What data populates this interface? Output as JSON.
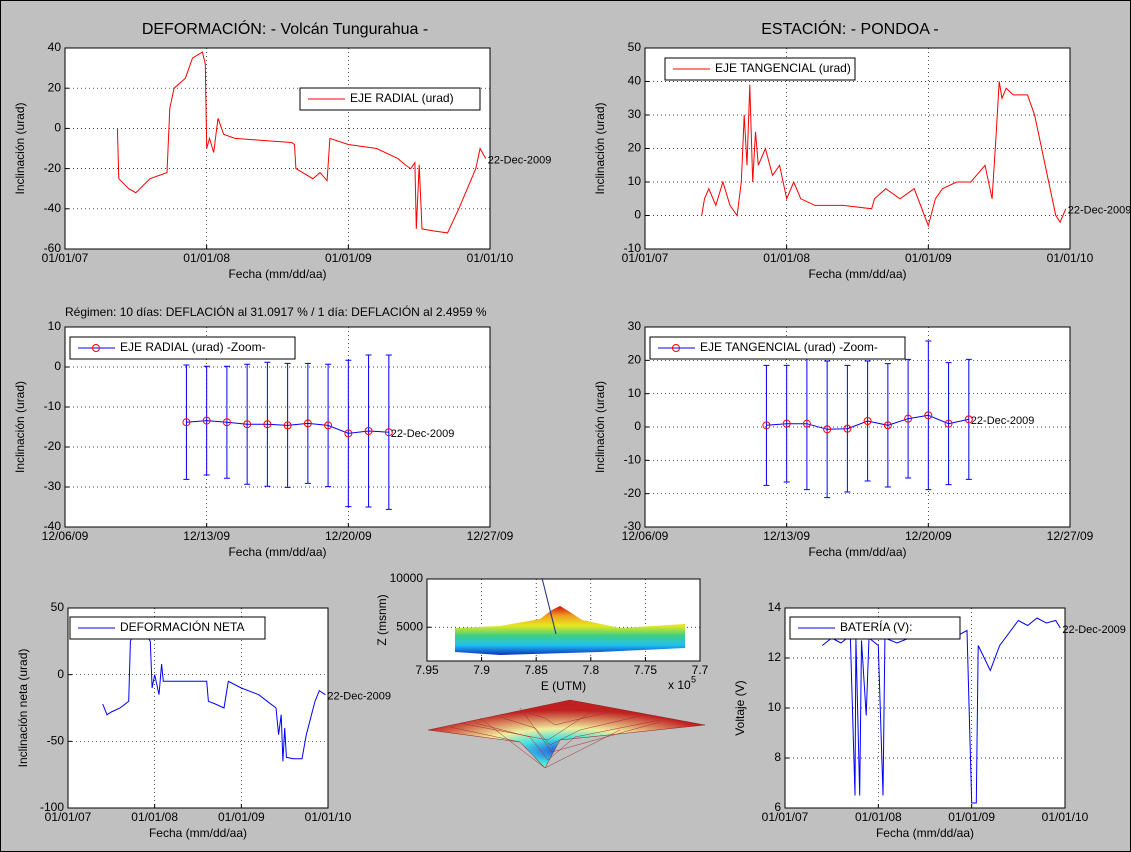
{
  "header": {
    "left_title": "DEFORMACIÓN: - Volcán Tungurahua -",
    "right_title": "ESTACIÓN: - PONDOA -",
    "regime": "Régimen: 10 días: DEFLACIÓN al 31.0917 % / 1 día: DEFLACIÓN al 2.4959 %"
  },
  "chart_data": [
    {
      "type": "line",
      "xlabel": "Fecha (mm/dd/aa)",
      "ylabel": "Inclinación (urad)",
      "annotation": "22-Dec-2009",
      "grid": true,
      "xlim": [
        2007,
        2010
      ],
      "xticks": [
        {
          "value": 2007,
          "label": "01/01/07"
        },
        {
          "value": 2008,
          "label": "01/01/08"
        },
        {
          "value": 2009,
          "label": "01/01/09"
        },
        {
          "value": 2010,
          "label": "01/01/10"
        }
      ],
      "ylim": [
        -60,
        40
      ],
      "yticks": [
        -60,
        -40,
        -20,
        0,
        20,
        40
      ],
      "x": [
        2007.37,
        2007.38,
        2007.45,
        2007.5,
        2007.6,
        2007.72,
        2007.74,
        2007.77,
        2007.85,
        2007.9,
        2007.97,
        2007.99,
        2008.0,
        2008.02,
        2008.05,
        2008.08,
        2008.12,
        2008.2,
        2008.4,
        2008.6,
        2008.62,
        2008.63,
        2008.75,
        2008.8,
        2008.85,
        2008.87,
        2009.0,
        2009.2,
        2009.35,
        2009.4,
        2009.44,
        2009.47,
        2009.48,
        2009.5,
        2009.52,
        2009.6,
        2009.7,
        2009.78,
        2009.9,
        2009.93,
        2009.97
      ],
      "series": [
        {
          "name": "EJE RADIAL (urad)",
          "color": "#ff0000",
          "values": [
            0,
            -25,
            -30,
            -32,
            -25,
            -22,
            10,
            20,
            25,
            35,
            38,
            32,
            -10,
            -5,
            -12,
            5,
            -3,
            -5,
            -6,
            -7,
            -8,
            -20,
            -25,
            -22,
            -26,
            -5,
            -8,
            -10,
            -15,
            -18,
            -20,
            -17,
            -50,
            -18,
            -50,
            -51,
            -52,
            -40,
            -20,
            -10,
            -15
          ]
        }
      ]
    },
    {
      "type": "line",
      "xlabel": "Fecha (mm/dd/aa)",
      "ylabel": "Inclinación (urad)",
      "annotation": "22-Dec-2009",
      "grid": true,
      "xlim": [
        2007,
        2010
      ],
      "xticks": [
        {
          "value": 2007,
          "label": "01/01/07"
        },
        {
          "value": 2008,
          "label": "01/01/08"
        },
        {
          "value": 2009,
          "label": "01/01/09"
        },
        {
          "value": 2010,
          "label": "01/01/10"
        }
      ],
      "ylim": [
        -10,
        50
      ],
      "yticks": [
        -10,
        0,
        10,
        20,
        30,
        40,
        50
      ],
      "x": [
        2007.4,
        2007.42,
        2007.45,
        2007.5,
        2007.55,
        2007.6,
        2007.65,
        2007.68,
        2007.7,
        2007.72,
        2007.74,
        2007.76,
        2007.78,
        2007.8,
        2007.85,
        2007.9,
        2007.95,
        2008.0,
        2008.05,
        2008.1,
        2008.2,
        2008.4,
        2008.6,
        2008.62,
        2008.7,
        2008.8,
        2008.9,
        2009.0,
        2009.05,
        2009.1,
        2009.2,
        2009.3,
        2009.4,
        2009.45,
        2009.48,
        2009.5,
        2009.52,
        2009.55,
        2009.6,
        2009.7,
        2009.75,
        2009.85,
        2009.9,
        2009.93,
        2009.97
      ],
      "series": [
        {
          "name": "EJE TANGENCIAL (urad)",
          "color": "#ff0000",
          "values": [
            0,
            5,
            8,
            3,
            10,
            3,
            0,
            10,
            30,
            15,
            39,
            10,
            25,
            15,
            20,
            12,
            15,
            5,
            10,
            5,
            3,
            3,
            2,
            5,
            8,
            5,
            8,
            -3,
            5,
            8,
            10,
            10,
            15,
            5,
            25,
            40,
            35,
            38,
            36,
            36,
            30,
            10,
            0,
            -2,
            2
          ]
        }
      ]
    },
    {
      "type": "errorbar",
      "xlabel": "Fecha (mm/dd/aa)",
      "ylabel": "Inclinación (urad)",
      "annotation": "22-Dec-2009",
      "grid": true,
      "xlim": [
        6,
        27
      ],
      "xticks": [
        {
          "value": 6,
          "label": "12/06/09"
        },
        {
          "value": 13,
          "label": "12/13/09"
        },
        {
          "value": 20,
          "label": "12/20/09"
        },
        {
          "value": 27,
          "label": "12/27/09"
        }
      ],
      "ylim": [
        -40,
        10
      ],
      "yticks": [
        -40,
        -30,
        -20,
        -10,
        0,
        10
      ],
      "x": [
        12,
        13,
        14,
        15,
        16,
        17,
        18,
        19,
        20,
        21,
        22
      ],
      "series": [
        {
          "name": "EJE RADIAL (urad) -Zoom-",
          "color": "#0000ff",
          "marker_color": "#ff0000",
          "values": [
            -13.8,
            -13.4,
            -13.8,
            -14.3,
            -14.3,
            -14.6,
            -14.1,
            -14.6,
            -16.6,
            -16,
            -16.3
          ],
          "errors": [
            14.3,
            13.6,
            14,
            15,
            15.5,
            15.5,
            15,
            15.3,
            18.3,
            19,
            19.3
          ]
        }
      ]
    },
    {
      "type": "errorbar",
      "xlabel": "Fecha (mm/dd/aa)",
      "ylabel": "Inclinación (urad)",
      "annotation": "22-Dec-2009",
      "grid": true,
      "xlim": [
        6,
        27
      ],
      "xticks": [
        {
          "value": 6,
          "label": "12/06/09"
        },
        {
          "value": 13,
          "label": "12/13/09"
        },
        {
          "value": 20,
          "label": "12/20/09"
        },
        {
          "value": 27,
          "label": "12/27/09"
        }
      ],
      "ylim": [
        -30,
        30
      ],
      "yticks": [
        -30,
        -20,
        -10,
        0,
        10,
        20,
        30
      ],
      "x": [
        12,
        13,
        14,
        15,
        16,
        17,
        18,
        19,
        20,
        21,
        22
      ],
      "series": [
        {
          "name": "EJE TANGENCIAL (urad) -Zoom-",
          "color": "#0000ff",
          "marker_color": "#ff0000",
          "values": [
            0.5,
            1,
            1,
            -0.7,
            -0.5,
            1.8,
            0.5,
            2.5,
            3.5,
            1,
            2.3
          ],
          "errors": [
            18,
            17.5,
            19.8,
            20.5,
            19,
            18,
            18.5,
            17.8,
            22.3,
            18.3,
            18
          ]
        }
      ]
    },
    {
      "type": "line",
      "xlabel": "Fecha (mm/dd/aa)",
      "ylabel": "Inclinación neta (urad)",
      "annotation": "22-Dec-2009",
      "grid": true,
      "xlim": [
        2007,
        2010
      ],
      "xticks": [
        {
          "value": 2007,
          "label": "01/01/07"
        },
        {
          "value": 2008,
          "label": "01/01/08"
        },
        {
          "value": 2009,
          "label": "01/01/09"
        },
        {
          "value": 2010,
          "label": "01/01/10"
        }
      ],
      "ylim": [
        -100,
        50
      ],
      "yticks": [
        -100,
        -50,
        0,
        50
      ],
      "x": [
        2007.4,
        2007.45,
        2007.5,
        2007.6,
        2007.7,
        2007.72,
        2007.75,
        2007.9,
        2007.95,
        2007.97,
        2008.0,
        2008.05,
        2008.08,
        2008.1,
        2008.3,
        2008.6,
        2008.62,
        2008.7,
        2008.8,
        2008.85,
        2009.0,
        2009.2,
        2009.3,
        2009.4,
        2009.43,
        2009.46,
        2009.48,
        2009.5,
        2009.52,
        2009.6,
        2009.7,
        2009.75,
        2009.85,
        2009.9,
        2009.97
      ],
      "series": [
        {
          "name": "DEFORMACIÓN NETA",
          "color": "#0000ff",
          "values": [
            -22,
            -30,
            -28,
            -25,
            -20,
            25,
            30,
            30,
            25,
            -10,
            0,
            -15,
            8,
            -5,
            -5,
            -5,
            -20,
            -22,
            -25,
            -5,
            -10,
            -15,
            -20,
            -25,
            -45,
            -30,
            -65,
            -40,
            -62,
            -63,
            -63,
            -45,
            -20,
            -12,
            -15
          ]
        }
      ]
    },
    {
      "type": "surface",
      "xlabel": "E (UTM)",
      "ylabel": "Z (msnm)",
      "x_multiplier": "x 10",
      "x_multiplier_exp": "5",
      "grid": true,
      "xlim": [
        7.95,
        7.7
      ],
      "xticks": [
        7.95,
        7.9,
        7.85,
        7.8,
        7.75,
        7.7
      ],
      "ylim": [
        1500,
        10000
      ],
      "yticks": [
        5000,
        10000
      ]
    },
    {
      "type": "line",
      "xlabel": "Fecha (mm/dd/aa)",
      "ylabel": "Voltaje (V)",
      "annotation": "22-Dec-2009",
      "grid": true,
      "xlim": [
        2007,
        2010
      ],
      "xticks": [
        {
          "value": 2007,
          "label": "01/01/07"
        },
        {
          "value": 2008,
          "label": "01/01/08"
        },
        {
          "value": 2009,
          "label": "01/01/09"
        },
        {
          "value": 2010,
          "label": "01/01/10"
        }
      ],
      "ylim": [
        6,
        14
      ],
      "yticks": [
        6,
        8,
        10,
        12,
        14
      ],
      "x": [
        2007.4,
        2007.5,
        2007.6,
        2007.7,
        2007.75,
        2007.76,
        2007.8,
        2007.82,
        2007.87,
        2007.9,
        2008.0,
        2008.05,
        2008.07,
        2008.2,
        2008.4,
        2008.6,
        2008.8,
        2008.95,
        2009.0,
        2009.05,
        2009.07,
        2009.2,
        2009.3,
        2009.4,
        2009.5,
        2009.6,
        2009.7,
        2009.8,
        2009.9,
        2009.95
      ],
      "series": [
        {
          "name": "BATERÍA (V):",
          "color": "#0000ff",
          "values": [
            12.5,
            12.8,
            12.6,
            12.9,
            6.5,
            12.8,
            6.5,
            12.7,
            9.7,
            12.8,
            12.5,
            6.5,
            12.8,
            12.6,
            12.9,
            13.0,
            12.8,
            13.1,
            6.2,
            6.2,
            12.5,
            11.5,
            12.5,
            13,
            13.5,
            13.3,
            13.6,
            13.4,
            13.5,
            13.2
          ]
        }
      ]
    }
  ]
}
